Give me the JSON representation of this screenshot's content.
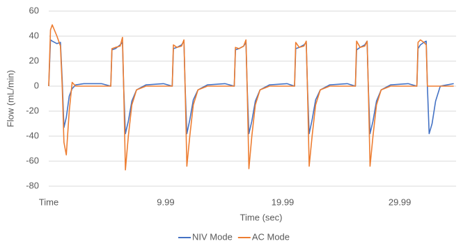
{
  "chart_data": {
    "type": "line",
    "xlabel": "Time (sec)",
    "ylabel": "Flow (mL/min)",
    "x": [
      0,
      0.15,
      0.3,
      0.7,
      1,
      1.15,
      1.3,
      1.5,
      1.75,
      2,
      2.3,
      3,
      4.5,
      5.3,
      5.4,
      5.7,
      6.1,
      6.3,
      6.4,
      6.55,
      6.8,
      7.1,
      7.5,
      8.3,
      9.8,
      10.55,
      10.65,
      10.95,
      11.35,
      11.55,
      11.65,
      11.8,
      12.05,
      12.35,
      12.75,
      13.55,
      15.05,
      15.85,
      15.95,
      16.25,
      16.65,
      16.85,
      16.95,
      17.1,
      17.35,
      17.65,
      18.05,
      18.85,
      20.35,
      21,
      21.1,
      21.4,
      21.8,
      22,
      22.1,
      22.25,
      22.5,
      22.8,
      23.2,
      24,
      25.5,
      26.2,
      26.3,
      26.6,
      27,
      27.2,
      27.3,
      27.45,
      27.7,
      28,
      28.4,
      29.2,
      30.7,
      31.45,
      31.55,
      31.75,
      32.05,
      32.25,
      32.35,
      32.5,
      32.75,
      33.05,
      33.45,
      34.6
    ],
    "series": [
      {
        "name": "NIV Mode",
        "color": "#4472c4",
        "values": [
          0,
          37,
          36,
          34,
          35,
          5,
          -33,
          -25,
          -8,
          -2,
          1,
          2,
          2,
          0,
          29,
          30,
          33,
          35,
          0,
          -38,
          -28,
          -12,
          -3,
          1,
          2,
          0,
          30,
          31,
          33,
          36,
          0,
          -38,
          -27,
          -11,
          -3,
          1,
          2,
          0,
          29,
          30,
          32,
          35,
          0,
          -38,
          -28,
          -12,
          -3,
          1,
          2,
          0,
          30,
          31,
          33,
          35,
          0,
          -38,
          -27,
          -11,
          -3,
          1,
          2,
          0,
          29,
          31,
          33,
          36,
          0,
          -38,
          -28,
          -12,
          -3,
          1,
          2,
          0,
          30,
          33,
          35,
          36,
          0,
          -38,
          -30,
          -12,
          0,
          2
        ]
      },
      {
        "name": "AC Mode",
        "color": "#ed7d31",
        "values": [
          0,
          45,
          49,
          40,
          32,
          0,
          -45,
          -55,
          -20,
          3,
          0,
          0,
          0,
          0,
          30,
          31,
          32,
          39,
          0,
          -67,
          -40,
          -15,
          -3,
          0,
          0,
          0,
          33,
          31,
          32,
          37,
          0,
          -64,
          -40,
          -15,
          -3,
          0,
          0,
          0,
          31,
          30,
          32,
          37,
          0,
          -66,
          -40,
          -15,
          -3,
          0,
          0,
          0,
          35,
          31,
          32,
          36,
          0,
          -64,
          -40,
          -15,
          -3,
          0,
          0,
          0,
          36,
          31,
          32,
          36,
          0,
          -64,
          -40,
          -15,
          -3,
          0,
          0,
          0,
          35,
          37,
          35,
          33,
          0,
          0,
          0,
          0,
          0,
          0
        ]
      }
    ],
    "xlim": [
      0,
      34.8
    ],
    "xticks": [
      {
        "value": 0,
        "label": "Time"
      },
      9.99,
      19.99,
      29.99
    ],
    "ylim": [
      -80,
      60
    ],
    "yticks": [
      -80,
      -60,
      -40,
      -20,
      0,
      20,
      40,
      60
    ],
    "grid": true,
    "legend": "bottom"
  }
}
